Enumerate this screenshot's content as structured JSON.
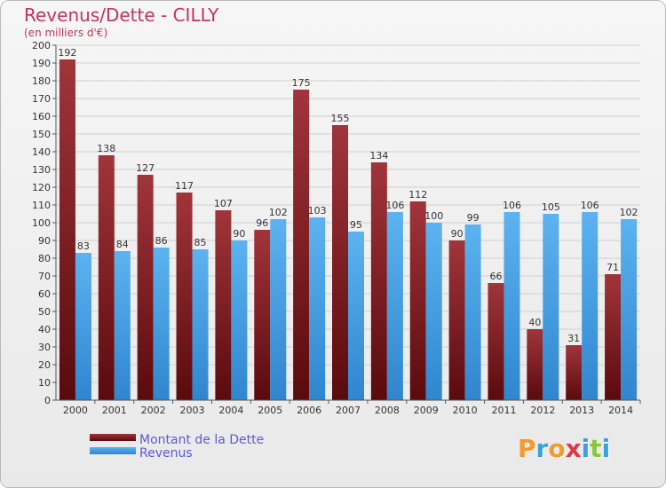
{
  "chart_data": {
    "type": "bar",
    "title": "Revenus/Dette - CILLY",
    "subtitle": "(en milliers d'€)",
    "categories": [
      "2000",
      "2001",
      "2002",
      "2003",
      "2004",
      "2005",
      "2006",
      "2007",
      "2008",
      "2009",
      "2010",
      "2011",
      "2012",
      "2013",
      "2014"
    ],
    "series": [
      {
        "name": "Montant de la Dette",
        "color": "#8b1e24",
        "values": [
          192,
          138,
          127,
          117,
          107,
          96,
          175,
          155,
          134,
          112,
          90,
          66,
          40,
          31,
          71
        ]
      },
      {
        "name": "Revenus",
        "color": "#4aa3e8",
        "values": [
          83,
          84,
          86,
          85,
          90,
          102,
          103,
          95,
          106,
          100,
          99,
          106,
          105,
          106,
          102
        ]
      }
    ],
    "ylim": [
      0,
      200
    ],
    "ytick_step": 10,
    "grid": true,
    "legend_position": "bottom-left"
  },
  "logo": {
    "text": "Proxiti",
    "letters": [
      "P",
      "r",
      "o",
      "x",
      "i",
      "t",
      "i"
    ],
    "colors": [
      "#f29a2e",
      "#3aa0de",
      "#f29a2e",
      "#e2364a",
      "#3aa0de",
      "#8cc63f",
      "#3aa0de"
    ]
  }
}
